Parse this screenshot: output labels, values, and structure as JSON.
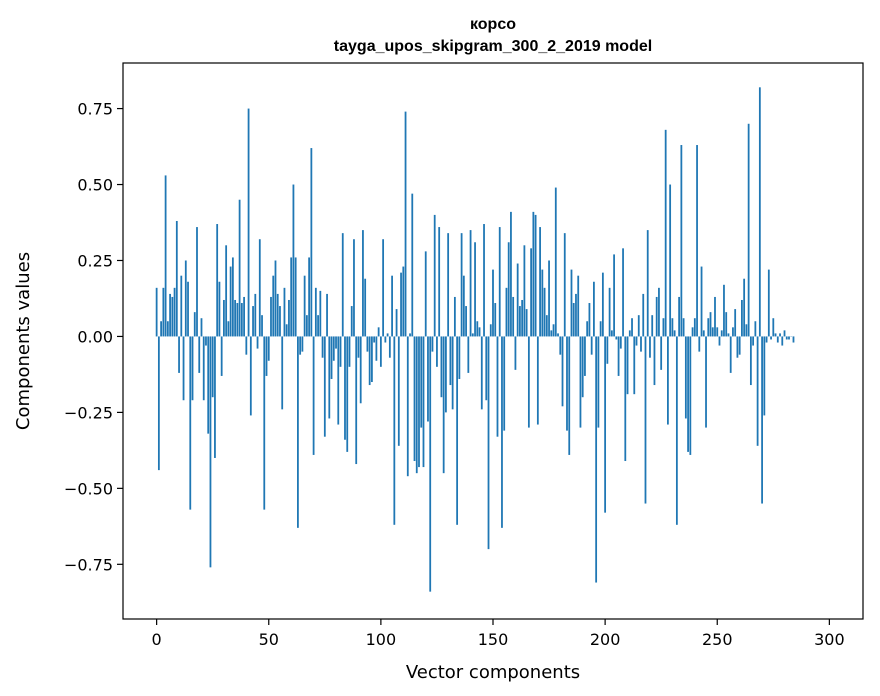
{
  "chart_data": {
    "type": "bar",
    "title": "корсо",
    "subtitle": "tayga_upos_skipgram_300_2_2019 model",
    "xlabel": "Vector components",
    "ylabel": "Components values",
    "xlim": [
      -15,
      315
    ],
    "ylim": [
      -0.93,
      0.9
    ],
    "xticks": [
      0,
      50,
      100,
      150,
      200,
      250,
      300
    ],
    "yticks": [
      -0.75,
      -0.5,
      -0.25,
      0.0,
      0.25,
      0.5,
      0.75
    ],
    "xtick_labels": [
      "0",
      "50",
      "100",
      "150",
      "200",
      "250",
      "300"
    ],
    "ytick_labels": [
      "−0.75",
      "−0.50",
      "−0.25",
      "0.00",
      "0.25",
      "0.50",
      "0.75"
    ],
    "grid": false,
    "bar_color": "#1f77b4",
    "values": [
      0.16,
      -0.44,
      0.05,
      0.16,
      0.53,
      0.05,
      0.14,
      0.13,
      0.16,
      0.38,
      -0.12,
      0.2,
      -0.21,
      0.25,
      0.18,
      -0.57,
      -0.21,
      0.08,
      0.36,
      -0.12,
      0.06,
      -0.21,
      -0.03,
      -0.32,
      -0.76,
      -0.2,
      -0.4,
      0.37,
      0.18,
      -0.13,
      0.12,
      0.3,
      0.05,
      0.23,
      0.26,
      0.12,
      0.11,
      0.45,
      0.11,
      0.13,
      -0.06,
      0.75,
      -0.26,
      0.1,
      0.14,
      -0.04,
      0.32,
      0.07,
      -0.57,
      -0.13,
      -0.08,
      0.13,
      0.2,
      0.25,
      0.14,
      0.1,
      -0.24,
      0.16,
      0.04,
      0.12,
      0.26,
      0.5,
      0.26,
      -0.63,
      -0.06,
      -0.05,
      0.2,
      0.07,
      0.26,
      0.62,
      -0.39,
      0.16,
      0.07,
      0.15,
      -0.07,
      -0.33,
      0.14,
      -0.27,
      -0.14,
      -0.08,
      -0.04,
      -0.29,
      -0.1,
      0.34,
      -0.34,
      -0.38,
      -0.1,
      0.1,
      0.32,
      -0.42,
      -0.07,
      -0.22,
      0.35,
      0.19,
      -0.05,
      -0.16,
      -0.15,
      -0.02,
      -0.08,
      0.03,
      -0.1,
      0.32,
      -0.02,
      0.01,
      -0.07,
      0.2,
      -0.62,
      0.09,
      -0.36,
      0.21,
      0.23,
      0.74,
      -0.46,
      0.01,
      0.47,
      -0.41,
      -0.45,
      -0.43,
      -0.3,
      -0.43,
      0.28,
      -0.28,
      -0.84,
      -0.05,
      0.4,
      -0.1,
      0.36,
      -0.2,
      -0.45,
      -0.25,
      0.34,
      -0.16,
      -0.24,
      0.13,
      -0.62,
      -0.14,
      0.34,
      0.2,
      0.1,
      -0.12,
      0.35,
      0.01,
      0.31,
      0.05,
      0.03,
      -0.24,
      0.37,
      -0.21,
      -0.7,
      0.04,
      0.22,
      0.11,
      -0.33,
      0.36,
      -0.63,
      -0.31,
      0.16,
      0.31,
      0.41,
      0.13,
      -0.11,
      0.24,
      0.1,
      0.12,
      0.3,
      0.09,
      -0.3,
      0.29,
      0.41,
      0.4,
      -0.29,
      0.36,
      0.22,
      0.16,
      0.07,
      0.25,
      0.02,
      0.04,
      0.49,
      0.01,
      -0.06,
      -0.23,
      0.34,
      -0.31,
      -0.39,
      0.22,
      0.11,
      0.14,
      0.2,
      -0.3,
      -0.2,
      -0.13,
      0.05,
      0.11,
      -0.06,
      0.18,
      -0.81,
      -0.3,
      0.05,
      0.21,
      -0.58,
      -0.09,
      0.16,
      0.02,
      0.27,
      -0.01,
      -0.13,
      -0.04,
      0.29,
      -0.41,
      -0.19,
      0.02,
      0.06,
      -0.19,
      -0.03,
      0.07,
      -0.05,
      0.14,
      -0.55,
      0.35,
      -0.07,
      0.07,
      -0.16,
      0.13,
      0.16,
      -0.11,
      0.06,
      0.68,
      -0.29,
      0.5,
      0.06,
      0.02,
      -0.62,
      0.13,
      0.63,
      0.06,
      -0.27,
      -0.38,
      -0.39,
      0.03,
      0.06,
      0.63,
      -0.05,
      0.23,
      0.02,
      -0.3,
      0.06,
      0.08,
      0.03,
      0.13,
      0.03,
      -0.03,
      0.02,
      0.17,
      0.08,
      0.01,
      -0.12,
      0.03,
      0.09,
      -0.07,
      -0.06,
      0.12,
      0.19,
      0.04,
      0.7,
      -0.16,
      -0.03,
      0.05,
      -0.36,
      0.82,
      -0.55,
      -0.26,
      -0.02,
      0.22,
      -0.01,
      0.06,
      0.01,
      -0.02,
      0.01,
      -0.03,
      0.02,
      -0.01,
      -0.01,
      0.0,
      -0.02
    ]
  }
}
